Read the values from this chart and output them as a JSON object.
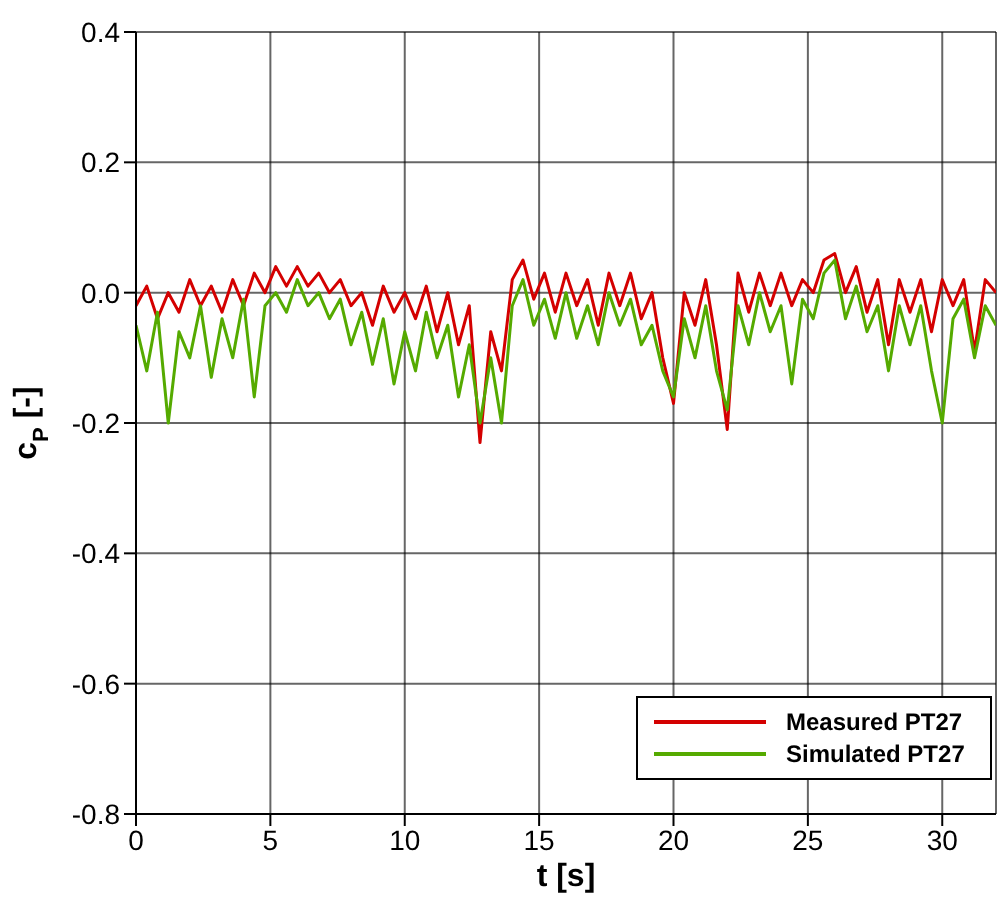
{
  "chart_data": {
    "type": "line",
    "xlabel": "t [s]",
    "ylabel": "c$_{P}$ [-]",
    "x": [
      0,
      0.4,
      0.8,
      1.2,
      1.6,
      2.0,
      2.4,
      2.8,
      3.2,
      3.6,
      4.0,
      4.4,
      4.8,
      5.2,
      5.6,
      6.0,
      6.4,
      6.8,
      7.2,
      7.6,
      8.0,
      8.4,
      8.8,
      9.2,
      9.6,
      10.0,
      10.4,
      10.8,
      11.2,
      11.6,
      12.0,
      12.4,
      12.8,
      13.2,
      13.6,
      14.0,
      14.4,
      14.8,
      15.2,
      15.6,
      16.0,
      16.4,
      16.8,
      17.2,
      17.6,
      18.0,
      18.4,
      18.8,
      19.2,
      19.6,
      20.0,
      20.4,
      20.8,
      21.2,
      21.6,
      22.0,
      22.4,
      22.8,
      23.2,
      23.6,
      24.0,
      24.4,
      24.8,
      25.2,
      25.6,
      26.0,
      26.4,
      26.8,
      27.2,
      27.6,
      28.0,
      28.4,
      28.8,
      29.2,
      29.6,
      30.0,
      30.4,
      30.8,
      31.2,
      31.6,
      32.0
    ],
    "series": [
      {
        "name": "Measured PT27",
        "color": "#d40000",
        "values": [
          -0.02,
          0.01,
          -0.04,
          0.0,
          -0.03,
          0.02,
          -0.02,
          0.01,
          -0.03,
          0.02,
          -0.02,
          0.03,
          0.0,
          0.04,
          0.01,
          0.04,
          0.01,
          0.03,
          0.0,
          0.02,
          -0.02,
          0.0,
          -0.05,
          0.01,
          -0.03,
          0.0,
          -0.04,
          0.01,
          -0.06,
          0.0,
          -0.08,
          -0.02,
          -0.23,
          -0.06,
          -0.12,
          0.02,
          0.05,
          -0.01,
          0.03,
          -0.03,
          0.03,
          -0.02,
          0.02,
          -0.05,
          0.03,
          -0.02,
          0.03,
          -0.04,
          0.0,
          -0.1,
          -0.17,
          0.0,
          -0.05,
          0.02,
          -0.08,
          -0.21,
          0.03,
          -0.03,
          0.03,
          -0.02,
          0.03,
          -0.02,
          0.02,
          0.0,
          0.05,
          0.06,
          0.0,
          0.04,
          -0.03,
          0.02,
          -0.08,
          0.02,
          -0.03,
          0.02,
          -0.06,
          0.02,
          -0.02,
          0.02,
          -0.09,
          0.02,
          0.0
        ]
      },
      {
        "name": "Simulated PT27",
        "color": "#55aa00",
        "values": [
          -0.05,
          -0.12,
          -0.03,
          -0.2,
          -0.06,
          -0.1,
          -0.02,
          -0.13,
          -0.04,
          -0.1,
          -0.01,
          -0.16,
          -0.02,
          0.0,
          -0.03,
          0.02,
          -0.02,
          0.0,
          -0.04,
          -0.01,
          -0.08,
          -0.03,
          -0.11,
          -0.04,
          -0.14,
          -0.06,
          -0.12,
          -0.03,
          -0.1,
          -0.05,
          -0.16,
          -0.08,
          -0.2,
          -0.1,
          -0.2,
          -0.02,
          0.02,
          -0.05,
          -0.01,
          -0.07,
          0.0,
          -0.07,
          -0.02,
          -0.08,
          0.0,
          -0.05,
          -0.01,
          -0.08,
          -0.05,
          -0.12,
          -0.16,
          -0.04,
          -0.1,
          -0.02,
          -0.12,
          -0.18,
          -0.02,
          -0.08,
          0.0,
          -0.06,
          -0.02,
          -0.14,
          -0.01,
          -0.04,
          0.03,
          0.05,
          -0.04,
          0.01,
          -0.06,
          -0.02,
          -0.12,
          -0.02,
          -0.08,
          -0.02,
          -0.12,
          -0.2,
          -0.04,
          -0.01,
          -0.1,
          -0.02,
          -0.05
        ]
      }
    ],
    "xlim": [
      0,
      32
    ],
    "xticks": [
      0,
      5,
      10,
      15,
      20,
      25,
      30
    ],
    "ylim": [
      -0.8,
      0.4
    ],
    "yticks": [
      -0.8,
      -0.6,
      -0.4,
      -0.2,
      {
        "value": 0,
        "label": "0.0"
      },
      0.2,
      0.4
    ],
    "grid": true,
    "legend": "bottom right",
    "marker": "none",
    "line_style": "solid"
  }
}
